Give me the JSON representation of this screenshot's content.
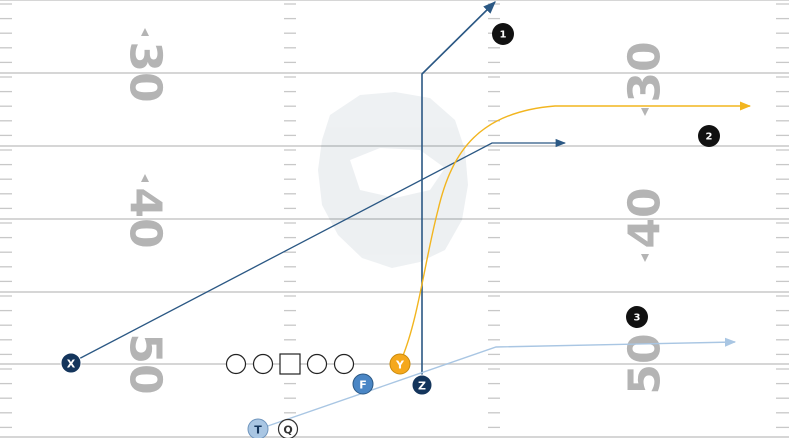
{
  "yard_numbers": {
    "left": [
      "30",
      "40",
      "50"
    ],
    "right": [
      "30",
      "40",
      "50"
    ]
  },
  "players": {
    "X": {
      "label": "X",
      "fill": "#14355c",
      "text": "#ffffff"
    },
    "Y": {
      "label": "Y",
      "fill": "#f5a81c",
      "text": "#ffffff"
    },
    "Z": {
      "label": "Z",
      "fill": "#14355c",
      "text": "#ffffff"
    },
    "F": {
      "label": "F",
      "fill": "#4a86c5",
      "text": "#ffffff"
    },
    "T": {
      "label": "T",
      "fill": "#a9c6e3",
      "text": "#14355c"
    },
    "Q": {
      "label": "Q",
      "fill": "#ffffff",
      "text": "#333333"
    }
  },
  "route_badges": [
    "1",
    "2",
    "3"
  ],
  "colors": {
    "route_dark": "#2b5884",
    "route_gold": "#f2b51f",
    "route_light": "#a9c6e3",
    "yard_line": "#c8c8c8",
    "badge": "#111111"
  }
}
